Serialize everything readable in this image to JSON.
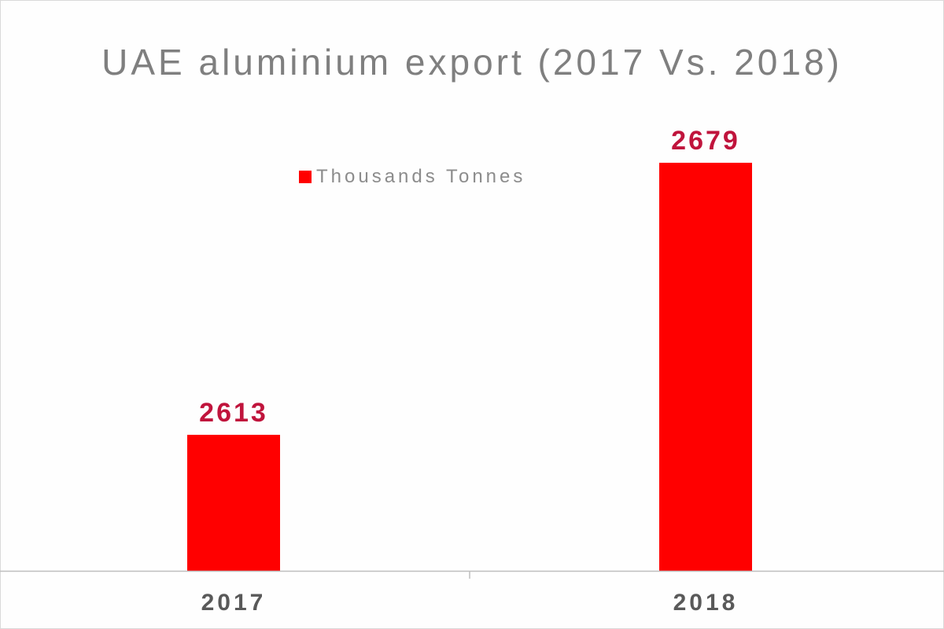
{
  "chart_data": {
    "type": "bar",
    "title": "UAE aluminium export (2017 Vs. 2018)",
    "categories": [
      "2017",
      "2018"
    ],
    "series": [
      {
        "name": "Thousands Tonnes",
        "values": [
          2613,
          2679
        ]
      }
    ],
    "ylim": [
      2580,
      2690
    ],
    "legend_position": "top-center",
    "grid": false,
    "data_labels": true,
    "colors": {
      "bar": "#ff0000",
      "data_label": "#c0143c",
      "axis": "#bfbfbf"
    }
  }
}
